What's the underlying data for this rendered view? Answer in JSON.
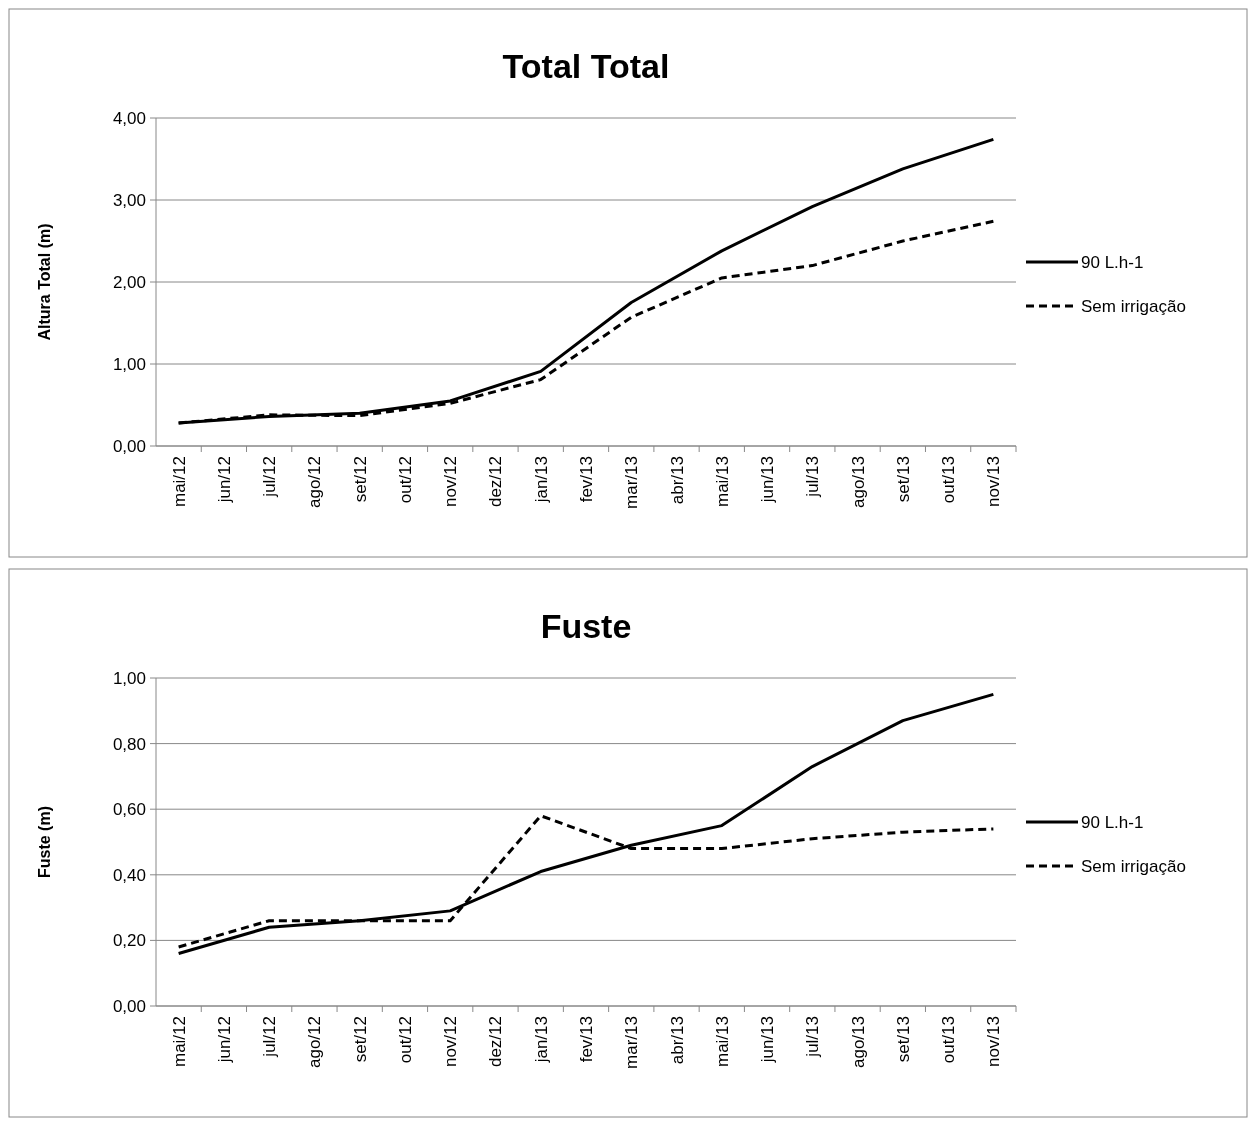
{
  "chart_data": [
    {
      "type": "line",
      "title": "Total Total",
      "ylabel": "Altura Total  (m)",
      "categories": [
        "mai/12",
        "jun/12",
        "jul/12",
        "ago/12",
        "set/12",
        "out/12",
        "nov/12",
        "dez/12",
        "jan/13",
        "fev/13",
        "mar/13",
        "abr/13",
        "mai/13",
        "jun/13",
        "jul/13",
        "ago/13",
        "set/13",
        "out/13",
        "nov/13"
      ],
      "series": [
        {
          "name": "90 L.h-1",
          "color": "#000000",
          "line_style": "solid",
          "values": [
            0.28,
            null,
            0.36,
            null,
            0.4,
            null,
            0.55,
            null,
            0.91,
            null,
            1.75,
            null,
            2.38,
            null,
            2.92,
            null,
            3.38,
            null,
            3.74
          ]
        },
        {
          "name": "Sem irrigação",
          "color": "#000000",
          "line_style": "dashed",
          "values": [
            0.28,
            null,
            0.38,
            null,
            0.37,
            null,
            0.52,
            null,
            0.81,
            null,
            1.57,
            null,
            2.05,
            null,
            2.2,
            null,
            2.5,
            null,
            2.74
          ]
        }
      ],
      "ylim": [
        0,
        4
      ],
      "yticks": [
        {
          "value": 0,
          "label": "0,00"
        },
        {
          "value": 1,
          "label": "1,00"
        },
        {
          "value": 2,
          "label": "2,00"
        },
        {
          "value": 3,
          "label": "3,00"
        },
        {
          "value": 4,
          "label": "4,00"
        }
      ],
      "grid": "y",
      "legend": "right",
      "marker": "none"
    },
    {
      "type": "line",
      "title": "Fuste",
      "ylabel": "Fuste (m)",
      "categories": [
        "mai/12",
        "jun/12",
        "jul/12",
        "ago/12",
        "set/12",
        "out/12",
        "nov/12",
        "dez/12",
        "jan/13",
        "fev/13",
        "mar/13",
        "abr/13",
        "mai/13",
        "jun/13",
        "jul/13",
        "ago/13",
        "set/13",
        "out/13",
        "nov/13"
      ],
      "series": [
        {
          "name": "90 L.h-1",
          "color": "#000000",
          "line_style": "solid",
          "values": [
            0.16,
            null,
            0.24,
            null,
            0.26,
            null,
            0.29,
            null,
            0.41,
            null,
            0.49,
            null,
            0.55,
            null,
            0.73,
            null,
            0.87,
            null,
            0.95
          ]
        },
        {
          "name": "Sem irrigação",
          "color": "#000000",
          "line_style": "dashed",
          "values": [
            0.18,
            null,
            0.26,
            null,
            0.26,
            null,
            0.26,
            null,
            0.58,
            null,
            0.48,
            null,
            0.48,
            null,
            0.51,
            null,
            0.53,
            null,
            0.54
          ]
        }
      ],
      "ylim": [
        0,
        1
      ],
      "yticks": [
        {
          "value": 0,
          "label": "0,00"
        },
        {
          "value": 0.2,
          "label": "0,20"
        },
        {
          "value": 0.4,
          "label": "0,40"
        },
        {
          "value": 0.6,
          "label": "0,60"
        },
        {
          "value": 0.8,
          "label": "0,80"
        },
        {
          "value": 1,
          "label": "1,00"
        }
      ],
      "grid": "y",
      "legend": "right",
      "marker": "none"
    }
  ]
}
